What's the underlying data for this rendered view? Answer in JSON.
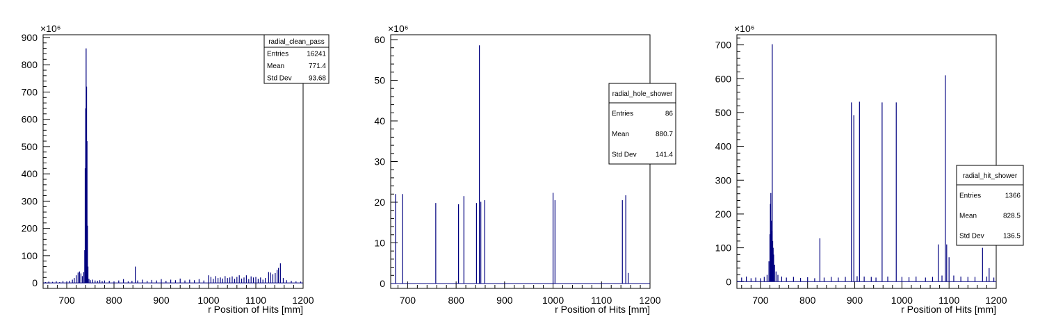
{
  "chart_data": [
    {
      "type": "histogram",
      "xlabel": "r Position of Hits [mm]",
      "ylabel": "",
      "multiplier": "×10⁶",
      "xlim": [
        650,
        1200
      ],
      "ylim": [
        -20,
        910
      ],
      "xticks": [
        700,
        800,
        900,
        1000,
        1100,
        1200
      ],
      "yticks": [
        0,
        100,
        200,
        300,
        400,
        500,
        600,
        700,
        800,
        900
      ],
      "stats": {
        "title": "radial_clean_pass",
        "rows": [
          [
            "Entries",
            "16241"
          ],
          [
            "Mean",
            "771.4"
          ],
          [
            "Std Dev",
            "93.68"
          ]
        ]
      },
      "series": [
        {
          "color": "#00007f",
          "points": [
            [
              655,
              3
            ],
            [
              662,
              5
            ],
            [
              670,
              4
            ],
            [
              678,
              6
            ],
            [
              685,
              3
            ],
            [
              692,
              7
            ],
            [
              700,
              6
            ],
            [
              706,
              8
            ],
            [
              712,
              12
            ],
            [
              716,
              18
            ],
            [
              720,
              28
            ],
            [
              724,
              38
            ],
            [
              727,
              42
            ],
            [
              730,
              35
            ],
            [
              733,
              25
            ],
            [
              736,
              40
            ],
            [
              738,
              120
            ],
            [
              739,
              420
            ],
            [
              740,
              640
            ],
            [
              741,
              860
            ],
            [
              742,
              720
            ],
            [
              743,
              520
            ],
            [
              744,
              210
            ],
            [
              745,
              60
            ],
            [
              747,
              15
            ],
            [
              750,
              10
            ],
            [
              755,
              12
            ],
            [
              760,
              9
            ],
            [
              765,
              8
            ],
            [
              770,
              10
            ],
            [
              775,
              7
            ],
            [
              780,
              9
            ],
            [
              790,
              8
            ],
            [
              800,
              6
            ],
            [
              810,
              9
            ],
            [
              820,
              14
            ],
            [
              830,
              6
            ],
            [
              838,
              8
            ],
            [
              845,
              60
            ],
            [
              850,
              9
            ],
            [
              860,
              12
            ],
            [
              870,
              8
            ],
            [
              880,
              11
            ],
            [
              890,
              9
            ],
            [
              900,
              14
            ],
            [
              910,
              8
            ],
            [
              920,
              12
            ],
            [
              930,
              10
            ],
            [
              940,
              16
            ],
            [
              950,
              9
            ],
            [
              960,
              12
            ],
            [
              970,
              10
            ],
            [
              980,
              14
            ],
            [
              990,
              9
            ],
            [
              1000,
              28
            ],
            [
              1005,
              22
            ],
            [
              1010,
              15
            ],
            [
              1015,
              25
            ],
            [
              1020,
              18
            ],
            [
              1025,
              20
            ],
            [
              1030,
              16
            ],
            [
              1035,
              25
            ],
            [
              1040,
              18
            ],
            [
              1045,
              20
            ],
            [
              1050,
              24
            ],
            [
              1055,
              15
            ],
            [
              1060,
              22
            ],
            [
              1065,
              28
            ],
            [
              1070,
              16
            ],
            [
              1075,
              20
            ],
            [
              1080,
              28
            ],
            [
              1085,
              14
            ],
            [
              1090,
              24
            ],
            [
              1095,
              20
            ],
            [
              1100,
              22
            ],
            [
              1105,
              15
            ],
            [
              1110,
              20
            ],
            [
              1115,
              12
            ],
            [
              1120,
              18
            ],
            [
              1127,
              40
            ],
            [
              1131,
              38
            ],
            [
              1136,
              32
            ],
            [
              1141,
              36
            ],
            [
              1145,
              48
            ],
            [
              1148,
              55
            ],
            [
              1152,
              72
            ],
            [
              1158,
              18
            ],
            [
              1165,
              10
            ],
            [
              1175,
              8
            ],
            [
              1185,
              6
            ],
            [
              1195,
              5
            ]
          ]
        }
      ]
    },
    {
      "type": "histogram",
      "xlabel": "r Position of Hits [mm]",
      "ylabel": "",
      "multiplier": "×10⁶",
      "xlim": [
        665,
        1200
      ],
      "ylim": [
        -1.2,
        61.2
      ],
      "xticks": [
        700,
        800,
        900,
        1000,
        1100,
        1200
      ],
      "yticks": [
        0,
        10,
        20,
        30,
        40,
        50,
        60
      ],
      "stats": {
        "title": "radial_hole_shower",
        "rows": [
          [
            "Entries",
            "86"
          ],
          [
            "Mean",
            "880.7"
          ],
          [
            "Std Dev",
            "141.4"
          ]
        ]
      },
      "series": [
        {
          "color": "#00007f",
          "points": [
            [
              675,
              22
            ],
            [
              689,
              22
            ],
            [
              758,
              19.8
            ],
            [
              805,
              19.5
            ],
            [
              816,
              21.5
            ],
            [
              842,
              19.8
            ],
            [
              848,
              58.6
            ],
            [
              851,
              20.1
            ],
            [
              859,
              20.5
            ],
            [
              1000,
              22.3
            ],
            [
              1004,
              20.5
            ],
            [
              1143,
              20.5
            ],
            [
              1150,
              21.7
            ],
            [
              1155,
              2.6
            ]
          ]
        }
      ]
    },
    {
      "type": "histogram",
      "xlabel": "r Position of Hits [mm]",
      "ylabel": "",
      "multiplier": "×10⁶",
      "xlim": [
        650,
        1200
      ],
      "ylim": [
        -20,
        730
      ],
      "xticks": [
        700,
        800,
        900,
        1000,
        1100,
        1200
      ],
      "yticks": [
        0,
        100,
        200,
        300,
        400,
        500,
        600,
        700
      ],
      "stats": {
        "title": "radial_hit_shower",
        "rows": [
          [
            "Entries",
            "1366"
          ],
          [
            "Mean",
            "828.5"
          ],
          [
            "Std Dev",
            "136.5"
          ]
        ]
      },
      "series": [
        {
          "color": "#00007f",
          "points": [
            [
              660,
              12
            ],
            [
              670,
              15
            ],
            [
              680,
              10
            ],
            [
              690,
              12
            ],
            [
              700,
              10
            ],
            [
              708,
              14
            ],
            [
              714,
              20
            ],
            [
              718,
              60
            ],
            [
              720,
              140
            ],
            [
              721,
              230
            ],
            [
              722,
              262
            ],
            [
              723,
              180
            ],
            [
              724,
              150
            ],
            [
              725,
              702
            ],
            [
              726,
              120
            ],
            [
              727,
              100
            ],
            [
              728,
              80
            ],
            [
              730,
              50
            ],
            [
              733,
              30
            ],
            [
              737,
              20
            ],
            [
              745,
              15
            ],
            [
              755,
              12
            ],
            [
              770,
              14
            ],
            [
              785,
              11
            ],
            [
              800,
              13
            ],
            [
              815,
              10
            ],
            [
              826,
              128
            ],
            [
              835,
              12
            ],
            [
              850,
              14
            ],
            [
              865,
              12
            ],
            [
              880,
              14
            ],
            [
              893,
              530
            ],
            [
              898,
              492
            ],
            [
              905,
              16
            ],
            [
              910,
              532
            ],
            [
              920,
              15
            ],
            [
              935,
              14
            ],
            [
              945,
              12
            ],
            [
              958,
              530
            ],
            [
              970,
              15
            ],
            [
              988,
              530
            ],
            [
              1000,
              14
            ],
            [
              1015,
              13
            ],
            [
              1030,
              15
            ],
            [
              1050,
              12
            ],
            [
              1065,
              14
            ],
            [
              1077,
              110
            ],
            [
              1085,
              18
            ],
            [
              1092,
              610
            ],
            [
              1095,
              110
            ],
            [
              1100,
              72
            ],
            [
              1110,
              18
            ],
            [
              1125,
              15
            ],
            [
              1140,
              14
            ],
            [
              1155,
              14
            ],
            [
              1171,
              100
            ],
            [
              1180,
              15
            ],
            [
              1185,
              40
            ],
            [
              1195,
              12
            ]
          ]
        }
      ]
    }
  ]
}
